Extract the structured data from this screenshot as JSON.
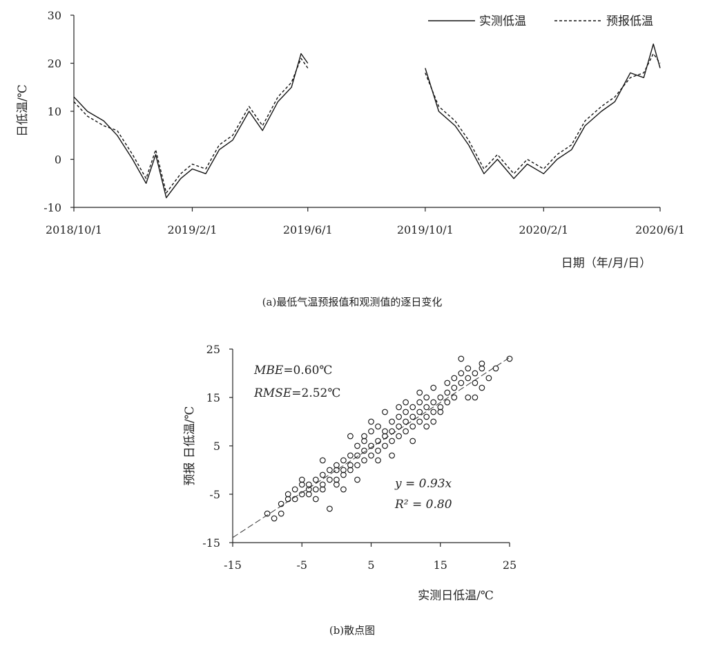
{
  "figure": {
    "caption_a": "(a)最低气温预报值和观测值的逐日变化",
    "caption_b": "(b)散点图"
  },
  "chart_data": [
    {
      "type": "line",
      "ylabel": "日低温/℃",
      "xlabel": "日期（年/月/日）",
      "ylim": [
        -10,
        30
      ],
      "yticks": [
        "30",
        "20",
        "10",
        "0",
        "-10"
      ],
      "xticks": [
        "2018/10/1",
        "2019/2/1",
        "2019/6/1",
        "2019/10/1",
        "2020/2/1",
        "2020/6/1"
      ],
      "legend": {
        "placement": "top-right",
        "items": [
          "实测低温",
          "预报低温"
        ]
      },
      "series": [
        {
          "name": "实测低温",
          "style": "solid",
          "segments": [
            {
              "x": [
                "2018/10/1",
                "2018/10/15",
                "2018/11/1",
                "2018/11/15",
                "2018/12/1",
                "2018/12/15",
                "2018/12/25",
                "2019/1/5",
                "2019/1/20",
                "2019/2/1",
                "2019/2/15",
                "2019/3/1",
                "2019/3/15",
                "2019/4/1",
                "2019/4/15",
                "2019/5/1",
                "2019/5/15",
                "2019/5/25",
                "2019/6/1"
              ],
              "y": [
                13,
                10,
                8,
                5,
                0,
                -5,
                1,
                -8,
                -4,
                -2,
                -3,
                2,
                4,
                10,
                6,
                12,
                15,
                22,
                20
              ]
            },
            {
              "x": [
                "2019/10/1",
                "2019/10/15",
                "2019/11/1",
                "2019/11/15",
                "2019/12/1",
                "2019/12/15",
                "2020/1/1",
                "2020/1/15",
                "2020/2/1",
                "2020/2/15",
                "2020/3/1",
                "2020/3/15",
                "2020/4/1",
                "2020/4/15",
                "2020/5/1",
                "2020/5/15",
                "2020/5/25",
                "2020/6/1"
              ],
              "y": [
                19,
                10,
                7,
                3,
                -3,
                0,
                -4,
                -1,
                -3,
                0,
                2,
                7,
                10,
                12,
                18,
                17,
                24,
                19
              ]
            }
          ]
        },
        {
          "name": "预报低温",
          "style": "dashed",
          "segments": [
            {
              "x": [
                "2018/10/1",
                "2018/10/15",
                "2018/11/1",
                "2018/11/15",
                "2018/12/1",
                "2018/12/15",
                "2018/12/25",
                "2019/1/5",
                "2019/1/20",
                "2019/2/1",
                "2019/2/15",
                "2019/3/1",
                "2019/3/15",
                "2019/4/1",
                "2019/4/15",
                "2019/5/1",
                "2019/5/15",
                "2019/5/25",
                "2019/6/1"
              ],
              "y": [
                12,
                9,
                7,
                6,
                1,
                -4,
                2,
                -7,
                -3,
                -1,
                -2,
                3,
                5,
                11,
                7,
                13,
                16,
                21,
                19
              ]
            },
            {
              "x": [
                "2019/10/1",
                "2019/10/15",
                "2019/11/1",
                "2019/11/15",
                "2019/12/1",
                "2019/12/15",
                "2020/1/1",
                "2020/1/15",
                "2020/2/1",
                "2020/2/15",
                "2020/3/1",
                "2020/3/15",
                "2020/4/1",
                "2020/4/15",
                "2020/5/1",
                "2020/5/15",
                "2020/5/25",
                "2020/6/1"
              ],
              "y": [
                18,
                11,
                8,
                4,
                -2,
                1,
                -3,
                0,
                -2,
                1,
                3,
                8,
                11,
                13,
                17,
                18,
                22,
                20
              ]
            }
          ]
        }
      ]
    },
    {
      "type": "scatter",
      "xlabel": "实测日低温/℃",
      "ylabel": "预报 日低温/℃",
      "xlim": [
        -15,
        25
      ],
      "ylim": [
        -15,
        25
      ],
      "xticks": [
        "-15",
        "-5",
        "5",
        "15",
        "25"
      ],
      "yticks": [
        "25",
        "15",
        "5",
        "-5",
        "-15"
      ],
      "stats": {
        "mbe_label": "MBE",
        "mbe_value": "=0.60℃",
        "rmse_label": "RMSE",
        "rmse_value": "=2.52℃",
        "fit_eq": "y = 0.93x",
        "r2": "R² = 0.80"
      },
      "fit": {
        "slope": 0.93
      },
      "points": [
        [
          -10,
          -9
        ],
        [
          -9,
          -10
        ],
        [
          -8,
          -9
        ],
        [
          -8,
          -7
        ],
        [
          -7,
          -6
        ],
        [
          -7,
          -5
        ],
        [
          -6,
          -6
        ],
        [
          -6,
          -4
        ],
        [
          -5,
          -5
        ],
        [
          -5,
          -3
        ],
        [
          -5,
          -2
        ],
        [
          -4,
          -5
        ],
        [
          -4,
          -3
        ],
        [
          -4,
          -4
        ],
        [
          -3,
          -4
        ],
        [
          -3,
          -2
        ],
        [
          -3,
          -6
        ],
        [
          -2,
          -3
        ],
        [
          -2,
          -1
        ],
        [
          -2,
          -4
        ],
        [
          -2,
          2
        ],
        [
          -1,
          -2
        ],
        [
          -1,
          0
        ],
        [
          -1,
          -8
        ],
        [
          0,
          0
        ],
        [
          0,
          1
        ],
        [
          0,
          -2
        ],
        [
          0,
          -3
        ],
        [
          1,
          0
        ],
        [
          1,
          2
        ],
        [
          1,
          -1
        ],
        [
          1,
          -4
        ],
        [
          2,
          1
        ],
        [
          2,
          3
        ],
        [
          2,
          0
        ],
        [
          2,
          7
        ],
        [
          3,
          3
        ],
        [
          3,
          5
        ],
        [
          3,
          1
        ],
        [
          3,
          -2
        ],
        [
          4,
          4
        ],
        [
          4,
          2
        ],
        [
          4,
          6
        ],
        [
          4,
          7
        ],
        [
          5,
          5
        ],
        [
          5,
          3
        ],
        [
          5,
          8
        ],
        [
          5,
          10
        ],
        [
          6,
          6
        ],
        [
          6,
          4
        ],
        [
          6,
          9
        ],
        [
          6,
          2
        ],
        [
          7,
          7
        ],
        [
          7,
          8
        ],
        [
          7,
          5
        ],
        [
          7,
          12
        ],
        [
          8,
          8
        ],
        [
          8,
          6
        ],
        [
          8,
          10
        ],
        [
          8,
          3
        ],
        [
          9,
          9
        ],
        [
          9,
          11
        ],
        [
          9,
          7
        ],
        [
          9,
          13
        ],
        [
          10,
          10
        ],
        [
          10,
          8
        ],
        [
          10,
          12
        ],
        [
          10,
          14
        ],
        [
          11,
          11
        ],
        [
          11,
          9
        ],
        [
          11,
          13
        ],
        [
          11,
          6
        ],
        [
          12,
          12
        ],
        [
          12,
          10
        ],
        [
          12,
          14
        ],
        [
          12,
          16
        ],
        [
          13,
          13
        ],
        [
          13,
          11
        ],
        [
          13,
          15
        ],
        [
          13,
          9
        ],
        [
          14,
          14
        ],
        [
          14,
          12
        ],
        [
          14,
          17
        ],
        [
          14,
          10
        ],
        [
          15,
          15
        ],
        [
          15,
          13
        ],
        [
          15,
          12
        ],
        [
          16,
          16
        ],
        [
          16,
          14
        ],
        [
          16,
          18
        ],
        [
          17,
          17
        ],
        [
          17,
          15
        ],
        [
          17,
          19
        ],
        [
          18,
          18
        ],
        [
          18,
          23
        ],
        [
          18,
          20
        ],
        [
          19,
          19
        ],
        [
          19,
          21
        ],
        [
          19,
          15
        ],
        [
          20,
          20
        ],
        [
          20,
          18
        ],
        [
          20,
          15
        ],
        [
          21,
          21
        ],
        [
          21,
          22
        ],
        [
          21,
          17
        ],
        [
          22,
          19
        ],
        [
          23,
          21
        ],
        [
          25,
          23
        ]
      ]
    }
  ]
}
